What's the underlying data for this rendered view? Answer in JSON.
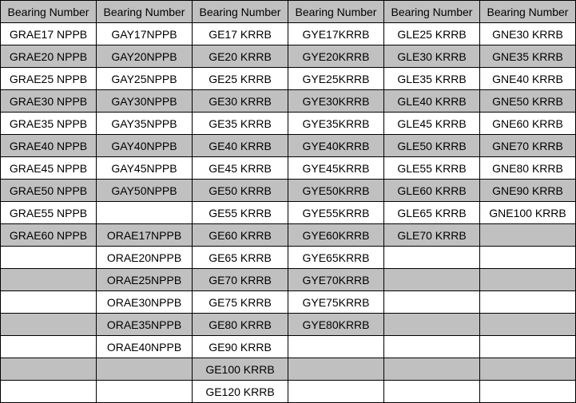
{
  "headers": [
    "Bearing Number",
    "Bearing Number",
    "Bearing Number",
    "Bearing Number",
    "Bearing Number",
    "Bearing Number"
  ],
  "rows": [
    [
      "GRAE17 NPPB",
      "GAY17NPPB",
      "GE17 KRRB",
      "GYE17KRRB",
      "GLE25 KRRB",
      "GNE30 KRRB"
    ],
    [
      "GRAE20 NPPB",
      "GAY20NPPB",
      "GE20 KRRB",
      "GYE20KRRB",
      "GLE30 KRRB",
      "GNE35 KRRB"
    ],
    [
      "GRAE25 NPPB",
      "GAY25NPPB",
      "GE25 KRRB",
      "GYE25KRRB",
      "GLE35 KRRB",
      "GNE40 KRRB"
    ],
    [
      "GRAE30 NPPB",
      "GAY30NPPB",
      "GE30 KRRB",
      "GYE30KRRB",
      "GLE40 KRRB",
      "GNE50 KRRB"
    ],
    [
      "GRAE35 NPPB",
      "GAY35NPPB",
      "GE35 KRRB",
      "GYE35KRRB",
      "GLE45 KRRB",
      "GNE60 KRRB"
    ],
    [
      "GRAE40 NPPB",
      "GAY40NPPB",
      "GE40 KRRB",
      "GYE40KRRB",
      "GLE50 KRRB",
      "GNE70 KRRB"
    ],
    [
      "GRAE45 NPPB",
      "GAY45NPPB",
      "GE45 KRRB",
      "GYE45KRRB",
      "GLE55 KRRB",
      "GNE80 KRRB"
    ],
    [
      "GRAE50 NPPB",
      "GAY50NPPB",
      "GE50 KRRB",
      "GYE50KRRB",
      "GLE60 KRRB",
      "GNE90 KRRB"
    ],
    [
      "GRAE55 NPPB",
      "",
      "GE55 KRRB",
      "GYE55KRRB",
      "GLE65 KRRB",
      "GNE100 KRRB"
    ],
    [
      "GRAE60 NPPB",
      "ORAE17NPPB",
      "GE60 KRRB",
      "GYE60KRRB",
      "GLE70 KRRB",
      ""
    ],
    [
      "",
      "ORAE20NPPB",
      "GE65 KRRB",
      "GYE65KRRB",
      "",
      ""
    ],
    [
      "",
      "ORAE25NPPB",
      "GE70 KRRB",
      "GYE70KRRB",
      "",
      ""
    ],
    [
      "",
      "ORAE30NPPB",
      "GE75 KRRB",
      "GYE75KRRB",
      "",
      ""
    ],
    [
      "",
      "ORAE35NPPB",
      "GE80 KRRB",
      "GYE80KRRB",
      "",
      ""
    ],
    [
      "",
      "ORAE40NPPB",
      "GE90 KRRB",
      "",
      "",
      ""
    ],
    [
      "",
      "",
      "GE100 KRRB",
      "",
      "",
      ""
    ],
    [
      "",
      "",
      "GE120 KRRB",
      "",
      "",
      ""
    ]
  ],
  "colors": {
    "stripe": "#c0c0c0",
    "header": "#c0c0c0",
    "border": "#000000"
  }
}
